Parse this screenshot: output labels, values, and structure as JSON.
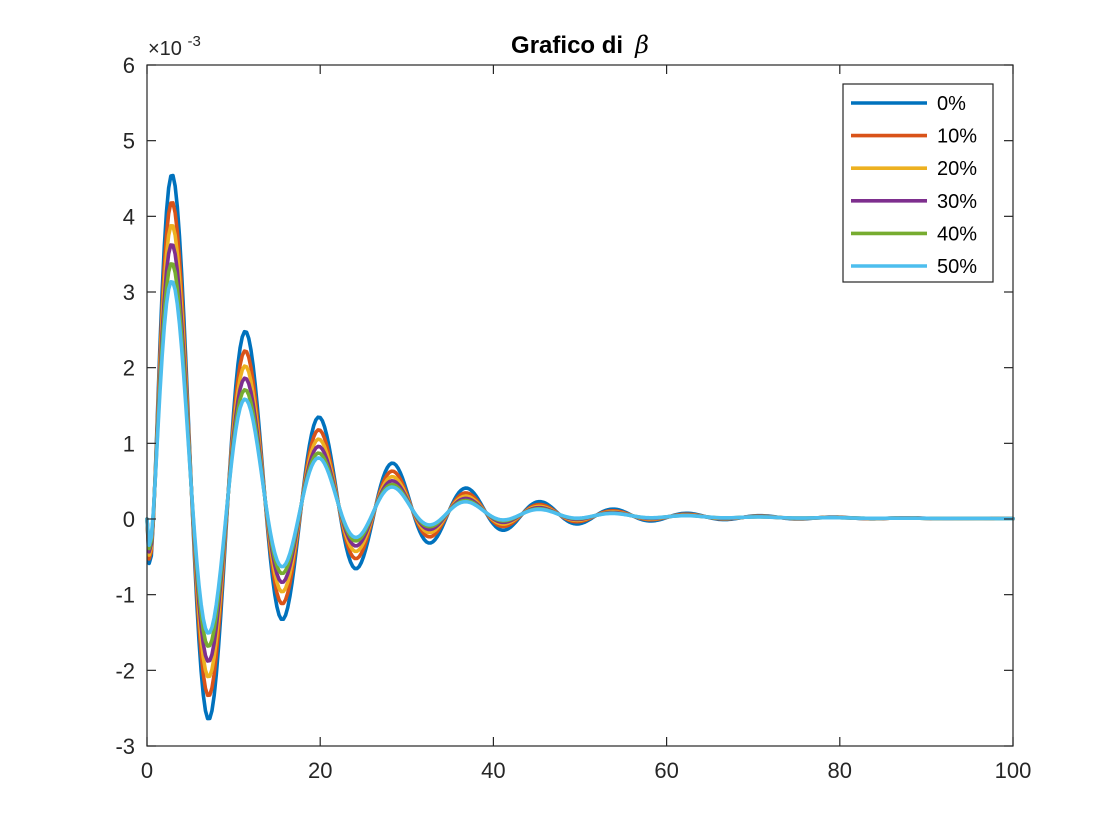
{
  "chart_data": {
    "type": "line",
    "title": "Grafico di",
    "title_symbol": "β",
    "xlabel": "",
    "ylabel": "",
    "xlim": [
      0,
      100
    ],
    "ylim": [
      -3,
      6
    ],
    "y_scale_factor": "×10",
    "y_scale_exponent": "-3",
    "xticks": [
      0,
      20,
      40,
      60,
      80,
      100
    ],
    "yticks": [
      -3,
      -2,
      -1,
      0,
      1,
      2,
      3,
      4,
      5,
      6
    ],
    "xtick_labels": [
      "0",
      "20",
      "40",
      "60",
      "80",
      "100"
    ],
    "ytick_labels": [
      "-3",
      "-2",
      "-1",
      "0",
      "1",
      "2",
      "3",
      "4",
      "5",
      "6"
    ],
    "grid": false,
    "legend_position": "top-right",
    "model": {
      "period": 8.5,
      "x_first_peak": 3,
      "offset_amplitude": 0.5,
      "offset_decay": 0.045,
      "step": 0.25
    },
    "series": [
      {
        "name": "0%",
        "color": "#0072BD",
        "amplitude": 5.2,
        "decay": 0.076
      },
      {
        "name": "10%",
        "color": "#D95319",
        "amplitude": 4.8,
        "decay": 0.08
      },
      {
        "name": "20%",
        "color": "#EDB120",
        "amplitude": 4.45,
        "decay": 0.083
      },
      {
        "name": "30%",
        "color": "#7E2F8E",
        "amplitude": 4.15,
        "decay": 0.0855
      },
      {
        "name": "40%",
        "color": "#77AC30",
        "amplitude": 3.85,
        "decay": 0.088
      },
      {
        "name": "50%",
        "color": "#4DBEEE",
        "amplitude": 3.55,
        "decay": 0.089
      }
    ]
  }
}
